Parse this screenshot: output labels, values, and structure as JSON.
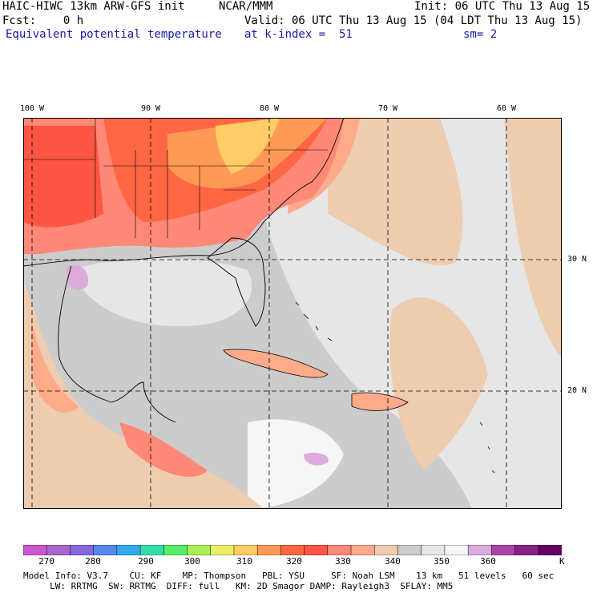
{
  "header": {
    "model": "HAIC-HIWC 13km ARW-GFS init",
    "org": "NCAR/MMM",
    "init": "Init: 06 UTC Thu 13 Aug 15",
    "fcst": "Fcst:    0 h",
    "valid": "Valid: 06 UTC Thu 13 Aug 15 (04 LDT Thu 13 Aug 15)",
    "field": "Equivalent potential temperature",
    "level": "at k-index =  51",
    "smoothing": "sm= 2"
  },
  "map": {
    "lon_labels": [
      "100 W",
      "90 W",
      "80 W",
      "70 W",
      "60 W"
    ],
    "lat_labels": [
      "30 N",
      "20 N"
    ]
  },
  "colorbar": {
    "ticks": [
      "270",
      "280",
      "290",
      "300",
      "310",
      "320",
      "330",
      "340",
      "350",
      "360"
    ],
    "unit": "K",
    "colors": [
      "#cc55cc",
      "#aa66cc",
      "#8866dd",
      "#5588ee",
      "#33aaee",
      "#33ddaa",
      "#55ee66",
      "#aaee55",
      "#eeee66",
      "#ffcc66",
      "#ff9955",
      "#ff6644",
      "#ff5544",
      "#ff8877",
      "#ffaa88",
      "#eeccb0",
      "#cccccc",
      "#e6e6e6",
      "#f6f6f6",
      "#ddaadd",
      "#aa44aa",
      "#882288",
      "#660066"
    ]
  },
  "footer": {
    "line1": "Model Info: V3.7    CU: KF    MP: Thompson   PBL: YSU     SF: Noah LSM    13 km   51 levels   60 sec",
    "line2": "     LW: RRTMG  SW: RRTMG  DIFF: full   KM: 2D Smagor DAMP: Rayleigh3  SFLAY: MM5"
  }
}
